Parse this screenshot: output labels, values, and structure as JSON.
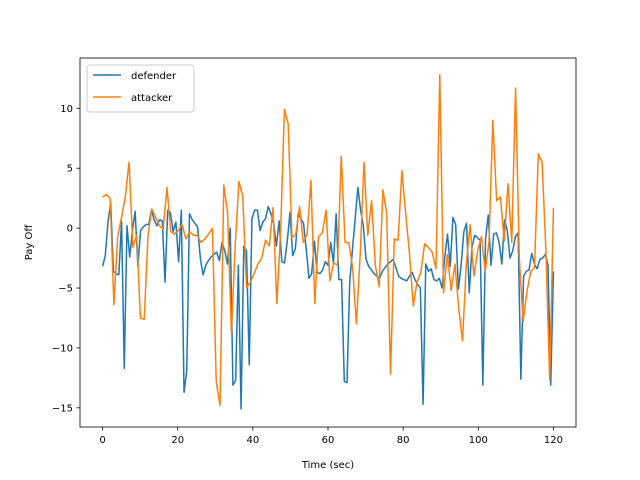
{
  "chart_data": {
    "type": "line",
    "title": "",
    "xlabel": "Time (sec)",
    "ylabel": "Pay Off",
    "xlim": [
      -6,
      126
    ],
    "ylim": [
      -16.6,
      14.2
    ],
    "x_ticks": [
      0,
      20,
      40,
      60,
      80,
      100,
      120
    ],
    "y_ticks": [
      -15,
      -10,
      -5,
      0,
      5,
      10
    ],
    "grid": false,
    "legend_position": "upper-left",
    "series": [
      {
        "name": "defender",
        "color": "#1f77b4",
        "values": [
          -3.2,
          -2.3,
          0.5,
          2.1,
          -3.6,
          -3.8,
          -3.9,
          0.6,
          -11.7,
          0.2,
          -2.4,
          -0.2,
          1.4,
          -3.2,
          -0.2,
          0.1,
          0.3,
          0.3,
          1.5,
          0.7,
          0.2,
          0.7,
          0.6,
          -4.5,
          1.5,
          1.3,
          -0.3,
          0.5,
          -2.8,
          1.5,
          -13.7,
          -11.9,
          1.2,
          0.7,
          0.4,
          0.1,
          -2.5,
          -3.9,
          -3.1,
          -2.7,
          -2.4,
          -2.2,
          -2.0,
          -2.7,
          -1.2,
          -1.9,
          -3.0,
          0.0,
          -13.1,
          -12.7,
          -3.1,
          -15.1,
          -1.5,
          -1.9,
          -11.4,
          0.8,
          1.5,
          1.5,
          -0.2,
          0.5,
          0.8,
          1.8,
          1.2,
          0.4,
          -1.5,
          0.6,
          -2.8,
          -2.9,
          -1.1,
          1.3,
          -2.3,
          -1.7,
          1.2,
          0.8,
          0.4,
          -1.8,
          -4.2,
          -3.8,
          -1.1,
          -3.7,
          -3.8,
          -3.5,
          -2.8,
          -3.1,
          -1.2,
          -2.9,
          1.2,
          -4.3,
          -4.3,
          -12.8,
          -12.9,
          -4.5,
          -1.8,
          0.8,
          3.4,
          1.5,
          0.2,
          -2.6,
          -3.2,
          -3.5,
          -3.8,
          -4.0,
          -4.2,
          -3.6,
          -3.3,
          -3.0,
          -2.8,
          -2.6,
          -3.3,
          -4.0,
          -4.2,
          -4.3,
          -4.4,
          -4.0,
          -3.7,
          -4.3,
          -4.7,
          -5.0,
          -14.7,
          -3.0,
          -3.6,
          -3.4,
          -4.3,
          -4.4,
          -4.2,
          -5.0,
          -2.4,
          -0.5,
          -3.2,
          0.9,
          0.3,
          -5.1,
          -3.1,
          -0.3,
          0.4,
          -5.4,
          -1.6,
          -0.6,
          -0.8,
          -1.0,
          -13.1,
          -0.9,
          1.1,
          -3.1,
          -0.5,
          -0.4,
          -1.2,
          -3.0,
          0.7,
          -0.2,
          -2.5,
          -1.9,
          -0.7,
          -0.4,
          -12.6,
          -4.0,
          -3.6,
          -3.5,
          -2.1,
          -3.0,
          -3.4,
          -2.6,
          -2.5,
          -2.2,
          -3.1,
          -13.1,
          -3.6
        ]
      },
      {
        "name": "attacker",
        "color": "#ff7f0e",
        "values": [
          2.6,
          2.8,
          2.5,
          -6.4,
          -0.7,
          0.9,
          2.6,
          5.5,
          -1.6,
          -0.6,
          -7.5,
          -7.6,
          -0.6,
          1.6,
          0.9,
          0.2,
          -0.1,
          3.4,
          -0.3,
          -0.5,
          -0.2,
          0.3,
          -0.9,
          -0.3,
          -0.6,
          -0.6,
          -1.2,
          -0.9,
          -0.5,
          0.0,
          -12.8,
          -14.8,
          3.6,
          1.3,
          -8.8,
          -1.5,
          3.9,
          2.7,
          -5.0,
          -4.5,
          -3.8,
          -3.0,
          -2.5,
          -1.0,
          -1.5,
          1.7,
          -6.3,
          -0.2,
          9.9,
          8.7,
          -0.8,
          -0.5,
          1.8,
          -1.2,
          -0.5,
          4.0,
          -6.3,
          -0.7,
          -0.4,
          1.5,
          -4.4,
          -2.9,
          -3.1,
          6.0,
          -1.2,
          -1.2,
          -3.3,
          -8.0,
          -2.2,
          5.5,
          -0.6,
          2.3,
          -3.1,
          -4.9,
          3.2,
          1.2,
          -12.2,
          -0.9,
          -1.0,
          4.8,
          1.2,
          -2.1,
          -6.5,
          -4.5,
          -3.7,
          -1.3,
          -1.6,
          -2.0,
          -3.4,
          12.8,
          -5.4,
          -2.2,
          -5.2,
          -3.0,
          -6.7,
          -9.4,
          -3.0,
          0.3,
          -4.0,
          -1.9,
          -0.7,
          -3.6,
          -1.1,
          9.0,
          2.3,
          2.6,
          -1.1,
          3.7,
          -1.2,
          11.7,
          -2.6,
          -7.8,
          -5.3,
          -3.6,
          -3.3,
          6.2,
          5.5,
          -1.8,
          -12.7,
          1.7
        ]
      }
    ]
  }
}
